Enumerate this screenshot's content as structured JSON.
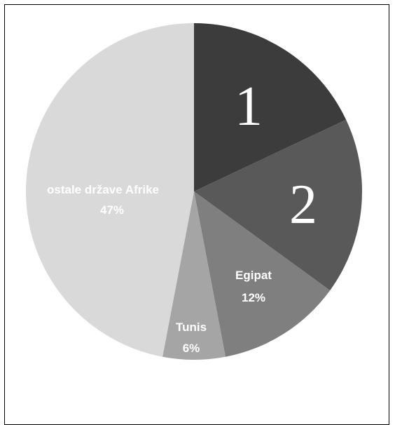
{
  "chart_data": {
    "type": "pie",
    "title": "",
    "start_angle_deg": 0,
    "direction": "clockwise",
    "slices": [
      {
        "label": "1",
        "value": 18,
        "color": "#3c3c3c"
      },
      {
        "label": "2",
        "value": 17,
        "color": "#595959"
      },
      {
        "label": "Egipat",
        "value": 12,
        "value_label": "12%",
        "color": "#7f7f7f"
      },
      {
        "label": "Tunis",
        "value": 6,
        "value_label": "6%",
        "color": "#a5a5a5"
      },
      {
        "label": "ostale države Afrike",
        "value": 47,
        "value_label": "47%",
        "color": "#d9d9d9"
      }
    ]
  }
}
